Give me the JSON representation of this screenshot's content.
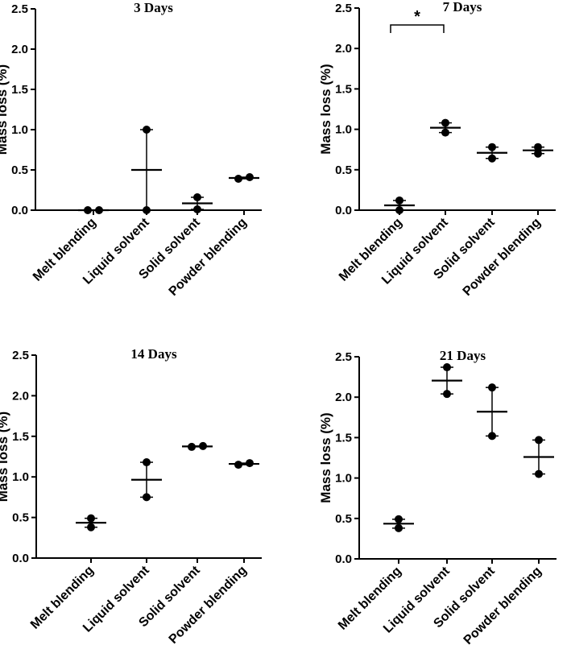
{
  "chart_data": [
    {
      "type": "scatter",
      "title": "3 Days",
      "ylabel": "Mass loss (%)",
      "xlabel": "",
      "ylim": [
        0,
        2.5
      ],
      "yticks": [
        "0.0",
        "0.5",
        "1.0",
        "1.5",
        "2.0",
        "2.5"
      ],
      "categories": [
        "Melt blending",
        "Liquid solvent",
        "Solid solvent",
        "Powder blending"
      ],
      "points": [
        [
          0.0,
          0.0
        ],
        [
          0.0,
          1.0
        ],
        [
          0.01,
          0.16
        ],
        [
          0.39,
          0.41
        ]
      ],
      "means": [
        0.0,
        0.5,
        0.085,
        0.4
      ],
      "significance": null
    },
    {
      "type": "scatter",
      "title": "7 Days",
      "ylabel": "Mass loss (%)",
      "xlabel": "",
      "ylim": [
        0,
        2.5
      ],
      "yticks": [
        "0.0",
        "0.5",
        "1.0",
        "1.5",
        "2.0",
        "2.5"
      ],
      "categories": [
        "Melt blending",
        "Liquid solvent",
        "Solid solvent",
        "Powder blending"
      ],
      "points": [
        [
          0.0,
          0.12
        ],
        [
          0.96,
          1.08
        ],
        [
          0.64,
          0.78
        ],
        [
          0.7,
          0.78
        ]
      ],
      "means": [
        0.06,
        1.02,
        0.71,
        0.74
      ],
      "significance": {
        "from": 0,
        "to": 1,
        "label": "*"
      }
    },
    {
      "type": "scatter",
      "title": "14 Days",
      "ylabel": "Mass loss (%)",
      "xlabel": "",
      "ylim": [
        0,
        2.5
      ],
      "yticks": [
        "0.0",
        "0.5",
        "1.0",
        "1.5",
        "2.0",
        "2.5"
      ],
      "categories": [
        "Melt blending",
        "Liquid solvent",
        "Solid solvent",
        "Powder blending"
      ],
      "points": [
        [
          0.38,
          0.49
        ],
        [
          0.75,
          1.18
        ],
        [
          1.37,
          1.38
        ],
        [
          1.15,
          1.17
        ]
      ],
      "means": [
        0.435,
        0.965,
        1.375,
        1.16
      ],
      "significance": null
    },
    {
      "type": "scatter",
      "title": "21 Days",
      "ylabel": "Mass loss (%)",
      "xlabel": "",
      "ylim": [
        0,
        2.5
      ],
      "yticks": [
        "0.0",
        "0.5",
        "1.0",
        "1.5",
        "2.0",
        "2.5"
      ],
      "categories": [
        "Melt blending",
        "Liquid solvent",
        "Solid solvent",
        "Powder blending"
      ],
      "points": [
        [
          0.38,
          0.49
        ],
        [
          2.04,
          2.37
        ],
        [
          1.52,
          2.12
        ],
        [
          1.05,
          1.47
        ]
      ],
      "means": [
        0.435,
        2.205,
        1.82,
        1.26
      ],
      "significance": null
    }
  ]
}
